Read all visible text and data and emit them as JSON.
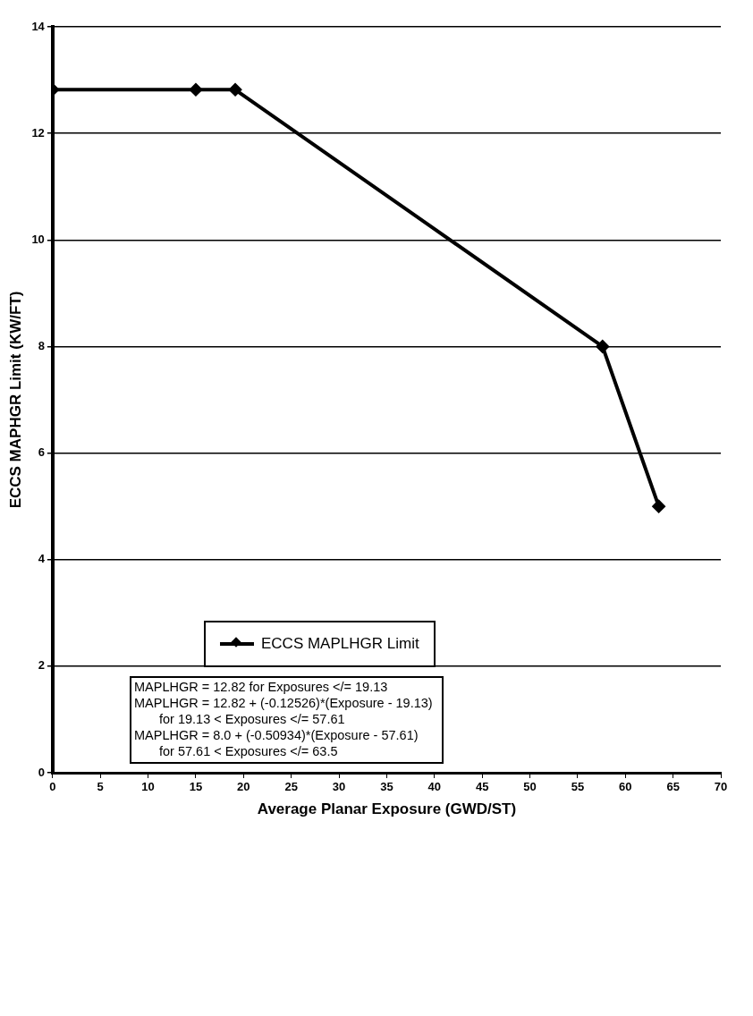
{
  "chart_data": {
    "type": "line",
    "xlabel": "Average Planar Exposure (GWD/ST)",
    "ylabel": "ECCS MAPHGR Limit (KW/FT)",
    "x": [
      0,
      15,
      19.13,
      57.61,
      63.5
    ],
    "series": [
      {
        "name": "ECCS MAPLHGR Limit",
        "color": "#000000",
        "values": [
          12.82,
          12.82,
          12.82,
          8.0,
          5.0
        ]
      }
    ],
    "xlim": [
      0,
      70
    ],
    "xticks": [
      0,
      5,
      10,
      15,
      20,
      25,
      30,
      35,
      40,
      45,
      50,
      55,
      60,
      65,
      70
    ],
    "ylim": [
      0,
      14
    ],
    "yticks": [
      0,
      2,
      4,
      6,
      8,
      10,
      12,
      14
    ],
    "grid": "y",
    "legend": "bottom",
    "marker": "diamond",
    "line_style": "solid",
    "annotations": [
      "MAPLHGR = 12.82  for Exposures </= 19.13",
      "MAPLHGR = 12.82 + (-0.12526)*(Exposure - 19.13)",
      "for 19.13 < Exposures </= 57.61",
      "MAPLHGR = 8.0 + (-0.50934)*(Exposure - 57.61)",
      "for 57.61 < Exposures </= 63.5"
    ]
  }
}
